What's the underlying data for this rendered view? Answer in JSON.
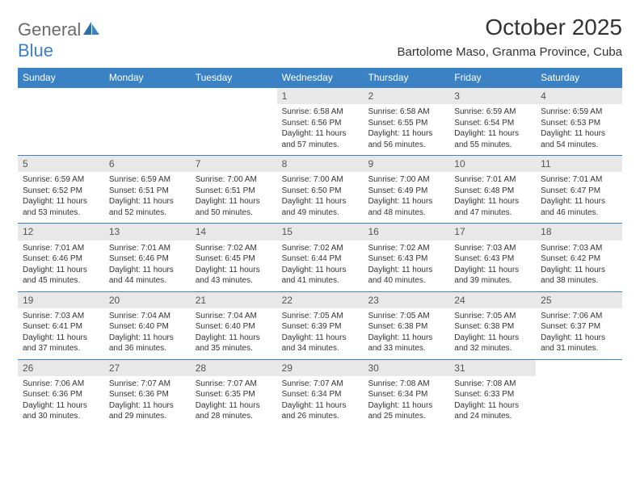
{
  "brand": {
    "general": "General",
    "blue": "Blue"
  },
  "title": "October 2025",
  "location": "Bartolome Maso, Granma Province, Cuba",
  "weekdays": [
    "Sunday",
    "Monday",
    "Tuesday",
    "Wednesday",
    "Thursday",
    "Friday",
    "Saturday"
  ],
  "colors": {
    "header_bg": "#3b82c4",
    "header_text": "#ffffff",
    "daynum_bg": "#e8e8e8",
    "text": "#333333",
    "logo_gray": "#6b6b6b",
    "logo_blue": "#3b82c4",
    "row_border": "#3b82c4"
  },
  "weeks": [
    [
      {
        "n": "",
        "sunrise": "",
        "sunset": "",
        "daylight": ""
      },
      {
        "n": "",
        "sunrise": "",
        "sunset": "",
        "daylight": ""
      },
      {
        "n": "",
        "sunrise": "",
        "sunset": "",
        "daylight": ""
      },
      {
        "n": "1",
        "sunrise": "Sunrise: 6:58 AM",
        "sunset": "Sunset: 6:56 PM",
        "daylight": "Daylight: 11 hours and 57 minutes."
      },
      {
        "n": "2",
        "sunrise": "Sunrise: 6:58 AM",
        "sunset": "Sunset: 6:55 PM",
        "daylight": "Daylight: 11 hours and 56 minutes."
      },
      {
        "n": "3",
        "sunrise": "Sunrise: 6:59 AM",
        "sunset": "Sunset: 6:54 PM",
        "daylight": "Daylight: 11 hours and 55 minutes."
      },
      {
        "n": "4",
        "sunrise": "Sunrise: 6:59 AM",
        "sunset": "Sunset: 6:53 PM",
        "daylight": "Daylight: 11 hours and 54 minutes."
      }
    ],
    [
      {
        "n": "5",
        "sunrise": "Sunrise: 6:59 AM",
        "sunset": "Sunset: 6:52 PM",
        "daylight": "Daylight: 11 hours and 53 minutes."
      },
      {
        "n": "6",
        "sunrise": "Sunrise: 6:59 AM",
        "sunset": "Sunset: 6:51 PM",
        "daylight": "Daylight: 11 hours and 52 minutes."
      },
      {
        "n": "7",
        "sunrise": "Sunrise: 7:00 AM",
        "sunset": "Sunset: 6:51 PM",
        "daylight": "Daylight: 11 hours and 50 minutes."
      },
      {
        "n": "8",
        "sunrise": "Sunrise: 7:00 AM",
        "sunset": "Sunset: 6:50 PM",
        "daylight": "Daylight: 11 hours and 49 minutes."
      },
      {
        "n": "9",
        "sunrise": "Sunrise: 7:00 AM",
        "sunset": "Sunset: 6:49 PM",
        "daylight": "Daylight: 11 hours and 48 minutes."
      },
      {
        "n": "10",
        "sunrise": "Sunrise: 7:01 AM",
        "sunset": "Sunset: 6:48 PM",
        "daylight": "Daylight: 11 hours and 47 minutes."
      },
      {
        "n": "11",
        "sunrise": "Sunrise: 7:01 AM",
        "sunset": "Sunset: 6:47 PM",
        "daylight": "Daylight: 11 hours and 46 minutes."
      }
    ],
    [
      {
        "n": "12",
        "sunrise": "Sunrise: 7:01 AM",
        "sunset": "Sunset: 6:46 PM",
        "daylight": "Daylight: 11 hours and 45 minutes."
      },
      {
        "n": "13",
        "sunrise": "Sunrise: 7:01 AM",
        "sunset": "Sunset: 6:46 PM",
        "daylight": "Daylight: 11 hours and 44 minutes."
      },
      {
        "n": "14",
        "sunrise": "Sunrise: 7:02 AM",
        "sunset": "Sunset: 6:45 PM",
        "daylight": "Daylight: 11 hours and 43 minutes."
      },
      {
        "n": "15",
        "sunrise": "Sunrise: 7:02 AM",
        "sunset": "Sunset: 6:44 PM",
        "daylight": "Daylight: 11 hours and 41 minutes."
      },
      {
        "n": "16",
        "sunrise": "Sunrise: 7:02 AM",
        "sunset": "Sunset: 6:43 PM",
        "daylight": "Daylight: 11 hours and 40 minutes."
      },
      {
        "n": "17",
        "sunrise": "Sunrise: 7:03 AM",
        "sunset": "Sunset: 6:43 PM",
        "daylight": "Daylight: 11 hours and 39 minutes."
      },
      {
        "n": "18",
        "sunrise": "Sunrise: 7:03 AM",
        "sunset": "Sunset: 6:42 PM",
        "daylight": "Daylight: 11 hours and 38 minutes."
      }
    ],
    [
      {
        "n": "19",
        "sunrise": "Sunrise: 7:03 AM",
        "sunset": "Sunset: 6:41 PM",
        "daylight": "Daylight: 11 hours and 37 minutes."
      },
      {
        "n": "20",
        "sunrise": "Sunrise: 7:04 AM",
        "sunset": "Sunset: 6:40 PM",
        "daylight": "Daylight: 11 hours and 36 minutes."
      },
      {
        "n": "21",
        "sunrise": "Sunrise: 7:04 AM",
        "sunset": "Sunset: 6:40 PM",
        "daylight": "Daylight: 11 hours and 35 minutes."
      },
      {
        "n": "22",
        "sunrise": "Sunrise: 7:05 AM",
        "sunset": "Sunset: 6:39 PM",
        "daylight": "Daylight: 11 hours and 34 minutes."
      },
      {
        "n": "23",
        "sunrise": "Sunrise: 7:05 AM",
        "sunset": "Sunset: 6:38 PM",
        "daylight": "Daylight: 11 hours and 33 minutes."
      },
      {
        "n": "24",
        "sunrise": "Sunrise: 7:05 AM",
        "sunset": "Sunset: 6:38 PM",
        "daylight": "Daylight: 11 hours and 32 minutes."
      },
      {
        "n": "25",
        "sunrise": "Sunrise: 7:06 AM",
        "sunset": "Sunset: 6:37 PM",
        "daylight": "Daylight: 11 hours and 31 minutes."
      }
    ],
    [
      {
        "n": "26",
        "sunrise": "Sunrise: 7:06 AM",
        "sunset": "Sunset: 6:36 PM",
        "daylight": "Daylight: 11 hours and 30 minutes."
      },
      {
        "n": "27",
        "sunrise": "Sunrise: 7:07 AM",
        "sunset": "Sunset: 6:36 PM",
        "daylight": "Daylight: 11 hours and 29 minutes."
      },
      {
        "n": "28",
        "sunrise": "Sunrise: 7:07 AM",
        "sunset": "Sunset: 6:35 PM",
        "daylight": "Daylight: 11 hours and 28 minutes."
      },
      {
        "n": "29",
        "sunrise": "Sunrise: 7:07 AM",
        "sunset": "Sunset: 6:34 PM",
        "daylight": "Daylight: 11 hours and 26 minutes."
      },
      {
        "n": "30",
        "sunrise": "Sunrise: 7:08 AM",
        "sunset": "Sunset: 6:34 PM",
        "daylight": "Daylight: 11 hours and 25 minutes."
      },
      {
        "n": "31",
        "sunrise": "Sunrise: 7:08 AM",
        "sunset": "Sunset: 6:33 PM",
        "daylight": "Daylight: 11 hours and 24 minutes."
      },
      {
        "n": "",
        "sunrise": "",
        "sunset": "",
        "daylight": ""
      }
    ]
  ]
}
